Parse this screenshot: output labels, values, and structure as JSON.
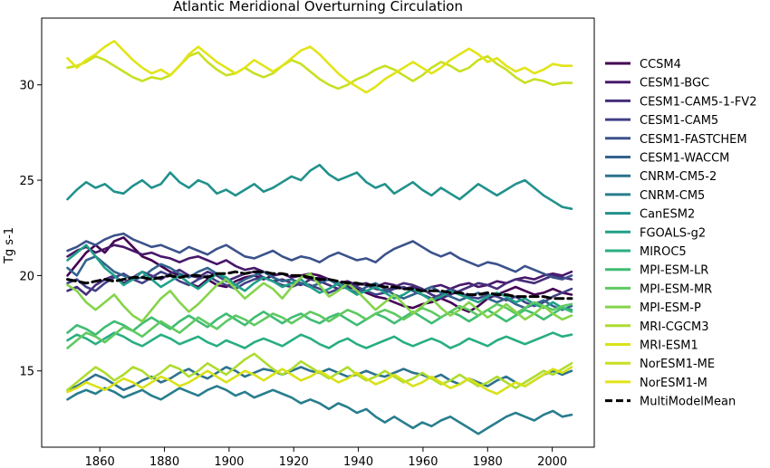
{
  "chart_data": {
    "type": "line",
    "title": "Atlantic Meridional Overturning Circulation",
    "xlabel": "",
    "ylabel": "Tg s-1",
    "xlim": [
      1842,
      2013
    ],
    "ylim": [
      11.0,
      33.5
    ],
    "x_ticks": [
      1860,
      1880,
      1900,
      1920,
      1940,
      1960,
      1980,
      2000
    ],
    "y_ticks": [
      15,
      20,
      25,
      30
    ],
    "grid": false,
    "legend_position": "outside-right",
    "x_start": 1850,
    "x_end": 2006,
    "series": [
      {
        "name": "CCSM4",
        "color": "#440154",
        "style": "solid",
        "values": [
          20.0,
          20.6,
          21.2,
          21.6,
          21.2,
          21.8,
          22.0,
          21.5,
          21.0,
          20.8,
          20.5,
          20.2,
          20.0,
          19.6,
          19.4,
          19.8,
          19.5,
          19.4,
          19.7,
          19.9,
          20.0,
          19.8,
          20.0,
          20.1,
          19.9,
          20.0,
          20.1,
          20.0,
          19.8,
          19.6,
          19.4,
          19.3,
          19.1,
          18.9,
          18.8,
          18.6,
          18.4,
          18.3,
          18.5,
          18.6,
          18.8,
          18.6,
          18.3,
          18.1,
          18.4,
          18.8,
          19.0,
          19.2,
          19.4,
          19.2,
          19.0,
          19.1,
          19.3,
          19.1,
          19.0
        ]
      },
      {
        "name": "CESM1-BGC",
        "color": "#48186a",
        "style": "solid",
        "values": [
          21.0,
          21.3,
          21.5,
          21.2,
          21.4,
          21.6,
          21.5,
          21.3,
          21.1,
          21.2,
          21.0,
          20.9,
          20.7,
          20.9,
          21.0,
          20.8,
          20.6,
          20.8,
          20.5,
          20.3,
          20.4,
          20.2,
          20.0,
          20.1,
          19.9,
          20.0,
          19.8,
          19.9,
          19.8,
          19.6,
          19.7,
          19.5,
          19.6,
          19.4,
          19.6,
          19.5,
          19.3,
          19.4,
          19.2,
          19.4,
          19.5,
          19.3,
          19.5,
          19.6,
          19.4,
          19.5,
          19.7,
          19.6,
          19.8,
          19.9,
          19.8,
          20.0,
          20.1,
          20.0,
          20.2
        ]
      },
      {
        "name": "CESM1-CAM5-1-FV2",
        "color": "#472d7b",
        "style": "solid",
        "values": [
          19.2,
          19.4,
          19.0,
          19.5,
          19.8,
          20.0,
          19.6,
          19.9,
          20.2,
          20.0,
          19.8,
          20.1,
          20.3,
          20.0,
          19.9,
          20.2,
          20.0,
          19.7,
          19.9,
          20.1,
          20.2,
          19.9,
          19.7,
          19.8,
          19.6,
          19.5,
          19.8,
          19.7,
          19.5,
          19.3,
          19.4,
          19.6,
          19.5,
          19.3,
          19.2,
          19.4,
          19.6,
          19.5,
          19.3,
          19.0,
          18.8,
          19.0,
          19.2,
          19.4,
          19.6,
          19.5,
          19.3,
          19.6,
          19.8,
          19.7,
          19.6,
          19.8,
          20.0,
          19.9,
          19.8
        ]
      },
      {
        "name": "CESM1-CAM5",
        "color": "#424086",
        "style": "solid",
        "values": [
          19.6,
          19.8,
          19.4,
          19.2,
          19.6,
          19.9,
          20.1,
          19.8,
          19.6,
          19.9,
          20.2,
          20.0,
          19.7,
          19.5,
          19.8,
          20.0,
          19.7,
          19.5,
          19.3,
          19.6,
          19.8,
          19.9,
          19.7,
          19.5,
          19.4,
          19.6,
          19.5,
          19.3,
          19.1,
          19.3,
          19.5,
          19.4,
          19.2,
          19.0,
          19.1,
          19.3,
          19.4,
          19.2,
          19.0,
          18.8,
          19.0,
          19.3,
          19.1,
          18.9,
          18.8,
          19.0,
          18.9,
          18.7,
          18.9,
          18.6,
          18.4,
          18.6,
          18.9,
          19.1,
          19.3
        ]
      },
      {
        "name": "CESM1-FASTCHEM",
        "color": "#3b528b",
        "style": "solid",
        "values": [
          21.3,
          21.5,
          21.8,
          21.6,
          21.9,
          22.1,
          22.2,
          21.9,
          21.7,
          21.5,
          21.6,
          21.4,
          21.2,
          21.5,
          21.3,
          21.1,
          21.4,
          21.6,
          21.3,
          21.0,
          20.9,
          21.1,
          21.3,
          21.0,
          20.8,
          21.0,
          20.9,
          20.7,
          21.0,
          21.2,
          21.0,
          20.8,
          20.9,
          20.7,
          21.1,
          21.4,
          21.6,
          21.8,
          21.5,
          21.2,
          21.0,
          21.2,
          20.9,
          20.7,
          20.5,
          20.7,
          20.6,
          20.4,
          20.2,
          20.5,
          20.3,
          20.1,
          19.9,
          19.8,
          20.0
        ]
      },
      {
        "name": "CESM1-WACCM",
        "color": "#33638d",
        "style": "solid",
        "values": [
          20.4,
          20.0,
          20.8,
          21.0,
          20.6,
          20.2,
          20.0,
          19.8,
          19.9,
          20.3,
          20.6,
          20.4,
          20.1,
          19.9,
          20.2,
          20.4,
          20.1,
          19.7,
          19.5,
          19.8,
          20.0,
          20.2,
          19.9,
          19.7,
          19.8,
          19.6,
          19.4,
          19.6,
          19.8,
          19.5,
          19.3,
          19.1,
          19.4,
          19.6,
          19.3,
          19.0,
          18.8,
          19.0,
          19.2,
          19.4,
          19.1,
          18.9,
          18.7,
          18.9,
          19.1,
          18.8,
          18.6,
          18.8,
          18.5,
          18.3,
          18.5,
          18.7,
          18.4,
          18.2,
          18.4
        ]
      },
      {
        "name": "CNRM-CM5-2",
        "color": "#2c728e",
        "style": "solid",
        "values": [
          14.0,
          14.2,
          14.5,
          14.8,
          14.6,
          14.3,
          14.0,
          14.2,
          14.5,
          14.7,
          14.4,
          14.6,
          14.9,
          15.1,
          14.8,
          14.6,
          14.9,
          15.2,
          15.0,
          14.7,
          14.9,
          15.1,
          15.0,
          14.8,
          15.0,
          15.2,
          15.0,
          14.9,
          15.1,
          14.9,
          14.7,
          14.8,
          15.0,
          14.8,
          14.7,
          14.9,
          15.1,
          14.9,
          14.8,
          14.6,
          14.8,
          14.5,
          14.3,
          14.6,
          14.4,
          14.2,
          14.5,
          14.7,
          14.4,
          14.2,
          14.5,
          14.8,
          15.0,
          14.8,
          15.0
        ]
      },
      {
        "name": "CNRM-CM5",
        "color": "#287d8e",
        "style": "solid",
        "values": [
          13.5,
          13.8,
          14.0,
          13.8,
          14.1,
          13.9,
          13.6,
          13.8,
          14.0,
          13.7,
          13.5,
          13.8,
          14.1,
          13.9,
          13.7,
          14.0,
          14.2,
          14.0,
          13.7,
          13.9,
          13.6,
          13.8,
          14.0,
          13.8,
          13.6,
          13.3,
          13.5,
          13.3,
          13.0,
          13.3,
          13.1,
          12.8,
          13.0,
          12.6,
          12.3,
          12.6,
          12.3,
          12.0,
          12.3,
          12.1,
          12.4,
          12.6,
          12.3,
          12.0,
          11.7,
          12.0,
          12.3,
          12.6,
          12.8,
          12.6,
          12.4,
          12.7,
          12.9,
          12.6,
          12.7
        ]
      },
      {
        "name": "CanESM2",
        "color": "#21918c",
        "style": "solid",
        "values": [
          24.0,
          24.5,
          24.9,
          24.6,
          24.8,
          24.4,
          24.3,
          24.7,
          25.0,
          24.6,
          24.8,
          25.4,
          24.9,
          24.6,
          25.0,
          24.8,
          24.3,
          24.5,
          24.2,
          24.5,
          24.8,
          24.4,
          24.6,
          24.9,
          25.2,
          25.0,
          25.5,
          25.8,
          25.3,
          25.0,
          25.2,
          25.4,
          24.9,
          24.6,
          24.8,
          24.3,
          24.6,
          24.9,
          24.5,
          24.2,
          24.6,
          24.3,
          24.0,
          24.4,
          24.8,
          24.5,
          24.2,
          24.5,
          24.8,
          25.0,
          24.6,
          24.2,
          23.9,
          23.6,
          23.5
        ]
      },
      {
        "name": "FGOALS-g2",
        "color": "#1fa088",
        "style": "solid",
        "values": [
          20.8,
          21.2,
          21.6,
          21.0,
          20.4,
          20.0,
          19.5,
          19.8,
          20.2,
          19.8,
          19.4,
          19.7,
          20.0,
          19.6,
          19.3,
          19.7,
          20.1,
          19.9,
          19.5,
          19.2,
          19.6,
          19.9,
          19.7,
          19.4,
          19.6,
          19.8,
          19.4,
          19.1,
          19.3,
          19.6,
          19.3,
          19.0,
          19.2,
          19.4,
          19.1,
          18.8,
          19.0,
          19.3,
          19.0,
          18.7,
          18.9,
          19.2,
          19.0,
          18.8,
          18.6,
          18.9,
          19.1,
          18.9,
          18.6,
          18.8,
          18.5,
          18.3,
          18.6,
          18.3,
          18.2
        ]
      },
      {
        "name": "MIROC5",
        "color": "#28ae80",
        "style": "solid",
        "values": [
          16.6,
          16.9,
          16.7,
          16.4,
          16.7,
          17.0,
          16.8,
          16.5,
          16.3,
          16.6,
          16.9,
          16.7,
          16.4,
          16.6,
          16.8,
          16.5,
          16.3,
          16.6,
          16.4,
          16.2,
          16.5,
          16.7,
          16.5,
          16.3,
          16.6,
          16.9,
          16.7,
          16.4,
          16.2,
          16.5,
          16.7,
          16.4,
          16.2,
          16.4,
          16.6,
          16.8,
          16.5,
          16.3,
          16.5,
          16.7,
          16.5,
          16.2,
          16.4,
          16.7,
          16.5,
          16.3,
          16.6,
          16.8,
          16.6,
          16.4,
          16.6,
          16.8,
          17.0,
          16.8,
          16.9
        ]
      },
      {
        "name": "MPI-ESM-LR",
        "color": "#3fbc73",
        "style": "solid",
        "values": [
          17.0,
          17.4,
          17.2,
          16.9,
          17.3,
          17.6,
          17.4,
          17.1,
          17.5,
          17.8,
          17.5,
          17.2,
          17.6,
          17.9,
          17.6,
          17.3,
          17.7,
          18.0,
          17.7,
          17.4,
          17.8,
          18.1,
          17.8,
          17.5,
          17.8,
          18.0,
          17.7,
          17.5,
          17.8,
          18.0,
          17.7,
          17.4,
          17.7,
          18.0,
          17.8,
          17.5,
          17.8,
          18.1,
          17.8,
          17.5,
          17.8,
          18.1,
          17.9,
          17.6,
          17.9,
          18.2,
          17.9,
          17.6,
          17.9,
          18.2,
          18.0,
          17.7,
          18.0,
          18.3,
          18.1
        ]
      },
      {
        "name": "MPI-ESM-MR",
        "color": "#5ec962",
        "style": "solid",
        "values": [
          16.2,
          16.6,
          17.0,
          16.8,
          16.5,
          16.9,
          17.3,
          17.1,
          16.8,
          17.2,
          17.6,
          17.3,
          17.0,
          17.4,
          17.8,
          17.5,
          17.2,
          17.6,
          17.9,
          17.7,
          17.4,
          17.7,
          18.0,
          17.8,
          17.5,
          17.8,
          18.1,
          17.9,
          17.6,
          17.9,
          18.2,
          18.0,
          17.7,
          18.0,
          18.2,
          18.0,
          17.7,
          18.0,
          18.3,
          18.1,
          17.8,
          18.1,
          18.4,
          18.2,
          17.9,
          18.2,
          18.5,
          18.3,
          18.0,
          18.3,
          18.6,
          18.4,
          18.2,
          18.4,
          18.5
        ]
      },
      {
        "name": "MPI-ESM-P",
        "color": "#84d44b",
        "style": "solid",
        "values": [
          19.5,
          19.2,
          18.6,
          18.2,
          18.6,
          19.0,
          18.4,
          17.9,
          17.6,
          18.2,
          18.8,
          19.2,
          18.6,
          18.1,
          18.5,
          19.0,
          19.5,
          19.8,
          19.3,
          18.8,
          19.2,
          19.6,
          19.3,
          18.8,
          19.4,
          19.9,
          20.1,
          19.5,
          18.9,
          19.2,
          19.6,
          19.2,
          18.7,
          18.2,
          18.6,
          19.0,
          18.5,
          18.0,
          18.4,
          18.8,
          18.3,
          17.9,
          18.2,
          18.6,
          18.2,
          17.8,
          18.1,
          18.5,
          18.1,
          17.7,
          18.0,
          18.4,
          18.0,
          17.7,
          17.9
        ]
      },
      {
        "name": "MRI-CGCM3",
        "color": "#addc30",
        "style": "solid",
        "values": [
          14.0,
          14.4,
          14.8,
          15.2,
          14.9,
          14.5,
          14.8,
          15.2,
          15.0,
          14.6,
          14.9,
          15.3,
          15.1,
          14.7,
          15.0,
          15.4,
          15.1,
          14.8,
          15.2,
          15.6,
          15.9,
          15.5,
          15.1,
          14.8,
          15.1,
          15.5,
          15.2,
          14.9,
          14.6,
          14.9,
          15.2,
          14.8,
          14.5,
          14.7,
          15.0,
          14.7,
          14.4,
          14.6,
          14.9,
          14.6,
          14.3,
          14.5,
          14.8,
          14.5,
          14.2,
          14.4,
          14.7,
          14.4,
          14.1,
          14.4,
          14.7,
          15.0,
          14.8,
          15.1,
          15.4
        ]
      },
      {
        "name": "MRI-ESM1",
        "color": "#d8e219",
        "style": "solid",
        "values": [
          13.9,
          14.1,
          14.4,
          14.2,
          14.0,
          14.3,
          14.6,
          14.4,
          14.1,
          14.4,
          14.7,
          14.5,
          14.2,
          14.4,
          14.7,
          15.0,
          14.7,
          14.4,
          14.7,
          15.0,
          14.8,
          14.5,
          14.8,
          15.1,
          14.8,
          14.5,
          14.7,
          15.0,
          14.7,
          14.4,
          14.6,
          14.9,
          14.6,
          14.3,
          14.5,
          14.8,
          14.5,
          14.2,
          14.4,
          14.7,
          14.4,
          14.1,
          14.3,
          14.6,
          14.3,
          14.0,
          13.8,
          14.1,
          14.4,
          14.2,
          14.5,
          14.8,
          15.1,
          14.9,
          15.2
        ]
      },
      {
        "name": "NorESM1-ME",
        "color": "#c8e020",
        "style": "solid",
        "values": [
          30.9,
          31.0,
          31.2,
          31.5,
          31.3,
          31.0,
          30.7,
          30.4,
          30.2,
          30.4,
          30.3,
          30.5,
          31.0,
          31.5,
          31.7,
          31.2,
          30.8,
          30.5,
          30.6,
          30.9,
          30.6,
          30.4,
          30.6,
          31.0,
          31.3,
          31.1,
          30.7,
          30.3,
          30.0,
          29.8,
          30.0,
          30.3,
          30.5,
          30.8,
          31.0,
          30.8,
          30.5,
          30.2,
          30.5,
          30.9,
          31.2,
          31.0,
          30.7,
          30.9,
          31.3,
          31.5,
          31.1,
          30.8,
          30.4,
          30.1,
          30.3,
          30.2,
          30.0,
          30.1,
          30.1
        ]
      },
      {
        "name": "NorESM1-M",
        "color": "#e2e418",
        "style": "solid",
        "values": [
          31.4,
          30.9,
          31.3,
          31.6,
          32.0,
          32.3,
          31.8,
          31.3,
          30.9,
          30.6,
          30.8,
          30.5,
          31.0,
          31.6,
          32.0,
          31.6,
          31.2,
          30.9,
          30.6,
          30.9,
          31.3,
          31.0,
          30.7,
          31.0,
          31.4,
          31.8,
          32.0,
          31.6,
          31.1,
          30.6,
          30.2,
          29.9,
          29.6,
          29.9,
          30.3,
          30.6,
          30.9,
          31.2,
          30.9,
          30.6,
          30.9,
          31.3,
          31.6,
          31.9,
          31.6,
          31.2,
          31.4,
          31.0,
          30.7,
          30.9,
          30.6,
          30.8,
          31.1,
          31.0,
          31.0
        ]
      },
      {
        "name": "MultiModelMean",
        "color": "#000000",
        "style": "dashed",
        "values": [
          19.8,
          19.7,
          19.6,
          19.7,
          19.8,
          19.7,
          19.8,
          19.9,
          19.9,
          19.8,
          19.9,
          20.0,
          19.9,
          20.0,
          20.0,
          19.9,
          20.1,
          20.1,
          20.2,
          20.1,
          20.2,
          20.2,
          20.1,
          20.1,
          20.0,
          20.0,
          19.9,
          19.8,
          19.8,
          19.7,
          19.6,
          19.6,
          19.5,
          19.5,
          19.4,
          19.4,
          19.3,
          19.3,
          19.2,
          19.2,
          19.2,
          19.1,
          19.1,
          19.0,
          19.0,
          19.1,
          19.0,
          19.0,
          18.9,
          18.9,
          18.9,
          18.9,
          18.8,
          18.8,
          18.8
        ]
      }
    ]
  }
}
